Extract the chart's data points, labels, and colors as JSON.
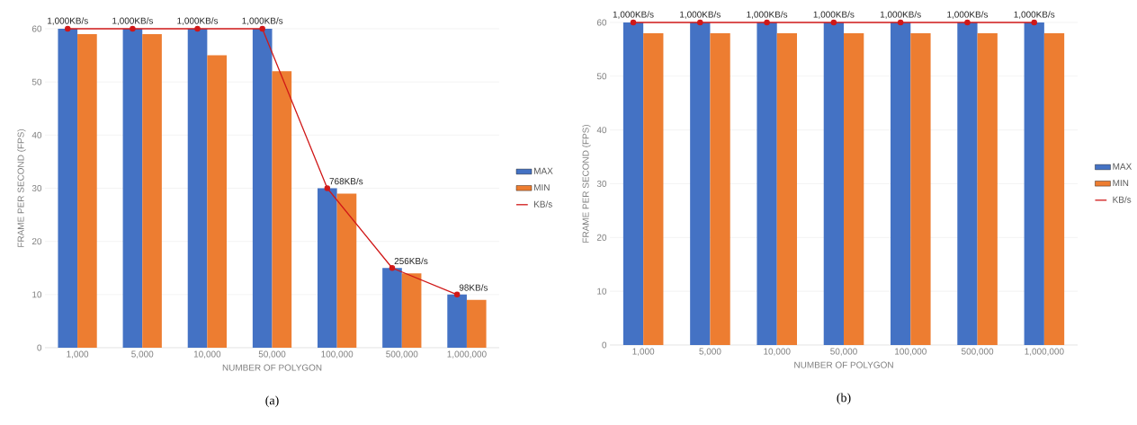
{
  "chart_data": [
    {
      "type": "bar",
      "xlabel": "NUMBER OF POLYGON",
      "ylabel": "FRAME PER SECOND (FPS)",
      "categories": [
        "1,000",
        "5,000",
        "10,000",
        "50,000",
        "100,000",
        "500,000",
        "1,000,000"
      ],
      "ylim": [
        0,
        60
      ],
      "yticks": [
        0,
        10,
        20,
        30,
        40,
        50,
        60
      ],
      "grid": "y",
      "legend": "right",
      "annotations": [
        "(a)",
        {
          "text": "1,000KB/s",
          "x": "1,000",
          "y": 60
        },
        {
          "text": "1,000KB/s",
          "x": "5,000",
          "y": 60
        },
        {
          "text": "1,000KB/s",
          "x": "10,000",
          "y": 60
        },
        {
          "text": "1,000KB/s",
          "x": "50,000",
          "y": 60
        },
        {
          "text": "768KB/s",
          "x": "100,000",
          "y": 30
        },
        {
          "text": "256KB/s",
          "x": "500,000",
          "y": 15
        },
        {
          "text": "98KB/s",
          "x": "1,000,000",
          "y": 10
        }
      ],
      "series": [
        {
          "name": "MAX",
          "color": "#4472c4",
          "values": [
            60,
            60,
            60,
            60,
            30,
            15,
            10
          ]
        },
        {
          "name": "MIN",
          "color": "#ed7d31",
          "values": [
            59,
            59,
            55,
            52,
            29,
            14,
            9
          ]
        },
        {
          "name": "KB/s",
          "type": "line",
          "color": "#d01818",
          "marker": "circle",
          "values": [
            60,
            60,
            60,
            60,
            30,
            15,
            10
          ]
        }
      ]
    },
    {
      "type": "bar",
      "xlabel": "NUMBER OF POLYGON",
      "ylabel": "FRAME PER SECOND (FPS)",
      "categories": [
        "1,000",
        "5,000",
        "10,000",
        "50,000",
        "100,000",
        "500,000",
        "1,000,000"
      ],
      "ylim": [
        0,
        60
      ],
      "yticks": [
        0,
        10,
        20,
        30,
        40,
        50,
        60
      ],
      "grid": "y",
      "legend": "right",
      "annotations": [
        "(b)",
        {
          "text": "1,000KB/s",
          "x": "1,000",
          "y": 60
        },
        {
          "text": "1,000KB/s",
          "x": "5,000",
          "y": 60
        },
        {
          "text": "1,000KB/s",
          "x": "10,000",
          "y": 60
        },
        {
          "text": "1,000KB/s",
          "x": "50,000",
          "y": 60
        },
        {
          "text": "1,000KB/s",
          "x": "100,000",
          "y": 60
        },
        {
          "text": "1,000KB/s",
          "x": "500,000",
          "y": 60
        },
        {
          "text": "1,000KB/s",
          "x": "1,000,000",
          "y": 60
        }
      ],
      "series": [
        {
          "name": "MAX",
          "color": "#4472c4",
          "values": [
            60,
            60,
            60,
            60,
            60,
            60,
            60
          ]
        },
        {
          "name": "MIN",
          "color": "#ed7d31",
          "values": [
            58,
            58,
            58,
            58,
            58,
            58,
            58
          ]
        },
        {
          "name": "KB/s",
          "type": "line",
          "color": "#d01818",
          "marker": "circle",
          "values": [
            60,
            60,
            60,
            60,
            60,
            60,
            60
          ]
        }
      ]
    }
  ]
}
